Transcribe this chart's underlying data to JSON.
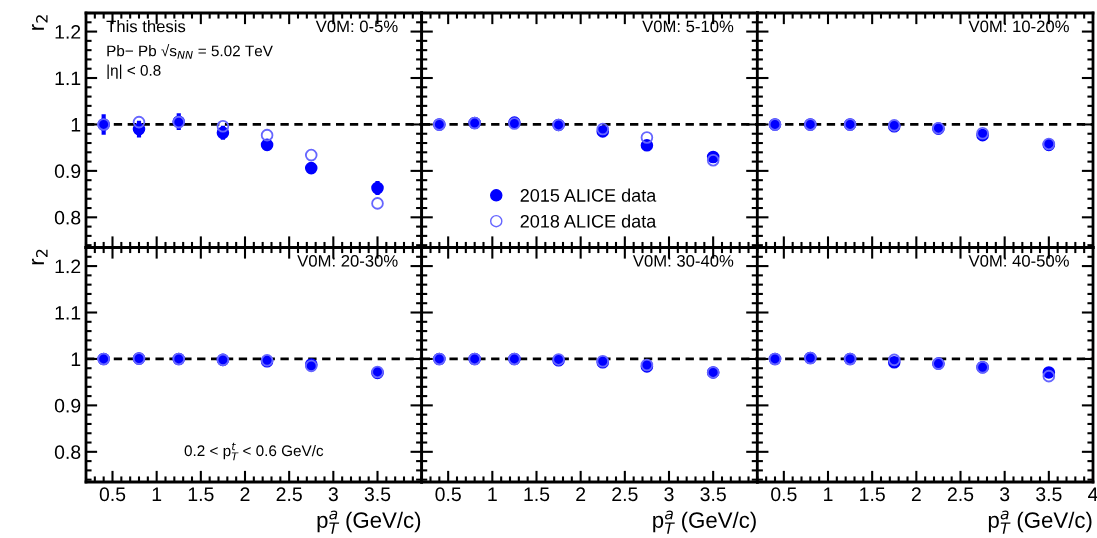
{
  "chart_data": [
    {
      "type": "scatter",
      "title": "V0M: 0-5%",
      "ylabel": "r$_{2}$",
      "x": [
        0.4,
        0.8,
        1.25,
        1.75,
        2.25,
        2.75,
        3.5
      ],
      "xlim": [
        0.2,
        4
      ],
      "ylim": [
        0.735,
        1.24
      ],
      "xticks": [
        0.5,
        1,
        1.5,
        2,
        2.5,
        3,
        3.5
      ],
      "yticks": [
        0.8,
        0.9,
        1,
        1.1,
        1.2
      ],
      "tick_labels": "y",
      "marker": "circle",
      "annotations": [
        "This thesis",
        "Pb− Pb √s$_{NN}$ = 5.02 TeV",
        "|η| < 0.8"
      ],
      "ref_lines": [
        {
          "axis": "y",
          "value": 1,
          "color": "#000000",
          "line_style": "dashed"
        }
      ],
      "series": [
        {
          "color": "#0000ff",
          "values": [
            1.0,
            0.99,
            1.006,
            0.982,
            0.956,
            0.906,
            0.863
          ],
          "errors": [
            0.022,
            0.018,
            0.018,
            0.015,
            0.01,
            0.012,
            0.015
          ]
        },
        {
          "color": "#6666ff",
          "values": [
            1.0,
            1.005,
            1.005,
            0.996,
            0.977,
            0.934,
            0.83
          ]
        }
      ]
    },
    {
      "type": "scatter",
      "title": "V0M: 5-10%",
      "x": [
        0.4,
        0.8,
        1.25,
        1.75,
        2.25,
        2.75,
        3.5
      ],
      "xlim": [
        0.2,
        4
      ],
      "ylim": [
        0.735,
        1.24
      ],
      "xticks": [
        0.5,
        1,
        1.5,
        2,
        2.5,
        3,
        3.5
      ],
      "yticks": [
        0.8,
        0.9,
        1,
        1.1,
        1.2
      ],
      "tick_labels": false,
      "marker": "circle",
      "legend": "bottom left",
      "ref_lines": [
        {
          "axis": "y",
          "value": 1,
          "color": "#000000",
          "line_style": "dashed"
        }
      ],
      "series": [
        {
          "name": "2015 ALICE data",
          "color": "#0000ff",
          "values": [
            1.0,
            1.003,
            1.004,
            0.999,
            0.985,
            0.955,
            0.93
          ]
        },
        {
          "name": "2018 ALICE data",
          "color": "#6666ff",
          "values": [
            1.0,
            1.003,
            1.002,
            0.999,
            0.99,
            0.972,
            0.923
          ]
        }
      ]
    },
    {
      "type": "scatter",
      "title": "V0M: 10-20%",
      "x": [
        0.4,
        0.8,
        1.25,
        1.75,
        2.25,
        2.75,
        3.5
      ],
      "xlim": [
        0.2,
        4
      ],
      "ylim": [
        0.735,
        1.24
      ],
      "xticks": [
        0.5,
        1,
        1.5,
        2,
        2.5,
        3,
        3.5
      ],
      "yticks": [
        0.8,
        0.9,
        1,
        1.1,
        1.2
      ],
      "tick_labels": false,
      "marker": "circle",
      "ref_lines": [
        {
          "axis": "y",
          "value": 1,
          "color": "#000000",
          "line_style": "dashed"
        }
      ],
      "series": [
        {
          "color": "#0000ff",
          "values": [
            1.0,
            1.0,
            1.0,
            0.996,
            0.991,
            0.977,
            0.956
          ]
        },
        {
          "color": "#6666ff",
          "values": [
            1.0,
            1.0,
            1.0,
            0.998,
            0.992,
            0.981,
            0.958
          ]
        }
      ]
    },
    {
      "type": "scatter",
      "title": "V0M: 20-30%",
      "ylabel": "r$_{2}$",
      "xlabel": "p$^{a}$$_{T}$ (GeV/c)",
      "x": [
        0.4,
        0.8,
        1.25,
        1.75,
        2.25,
        2.75,
        3.5
      ],
      "xlim": [
        0.2,
        4
      ],
      "ylim": [
        0.735,
        1.24
      ],
      "xticks": [
        0.5,
        1,
        1.5,
        2,
        2.5,
        3,
        3.5
      ],
      "yticks": [
        0.8,
        0.9,
        1,
        1.1,
        1.2
      ],
      "marker": "circle",
      "annotations": [
        "0.2 < p$^{t}$$_{T}$ < 0.6 GeV/c"
      ],
      "ref_lines": [
        {
          "axis": "y",
          "value": 1,
          "color": "#000000",
          "line_style": "dashed"
        }
      ],
      "series": [
        {
          "color": "#0000ff",
          "values": [
            1.0,
            1.001,
            1.0,
            0.998,
            0.995,
            0.988,
            0.97
          ]
        },
        {
          "color": "#6666ff",
          "values": [
            1.0,
            1.001,
            1.0,
            0.998,
            0.997,
            0.985,
            0.972
          ]
        }
      ]
    },
    {
      "type": "scatter",
      "title": "V0M: 30-40%",
      "xlabel": "p$^{a}$$_{T}$ (GeV/c)",
      "x": [
        0.4,
        0.8,
        1.25,
        1.75,
        2.25,
        2.75,
        3.5
      ],
      "xlim": [
        0.2,
        4
      ],
      "ylim": [
        0.735,
        1.24
      ],
      "xticks": [
        0.5,
        1,
        1.5,
        2,
        2.5,
        3,
        3.5
      ],
      "yticks": [
        0.8,
        0.9,
        1,
        1.1,
        1.2
      ],
      "tick_labels": "x",
      "marker": "circle",
      "ref_lines": [
        {
          "axis": "y",
          "value": 1,
          "color": "#000000",
          "line_style": "dashed"
        }
      ],
      "series": [
        {
          "color": "#0000ff",
          "values": [
            1.0,
            1.0,
            1.0,
            0.997,
            0.993,
            0.984,
            0.971
          ]
        },
        {
          "color": "#6666ff",
          "values": [
            1.0,
            1.0,
            1.0,
            0.999,
            0.995,
            0.987,
            0.971
          ]
        }
      ]
    },
    {
      "type": "scatter",
      "title": "V0M: 40-50%",
      "xlabel": "p$^{a}$$_{T}$ (GeV/c)",
      "x": [
        0.4,
        0.8,
        1.25,
        1.75,
        2.25,
        2.75,
        3.5
      ],
      "xlim": [
        0.2,
        4
      ],
      "ylim": [
        0.735,
        1.24
      ],
      "xticks": [
        0.5,
        1,
        1.5,
        2,
        2.5,
        3,
        3.5,
        4
      ],
      "yticks": [
        0.8,
        0.9,
        1,
        1.1,
        1.2
      ],
      "tick_labels": "x",
      "marker": "circle",
      "ref_lines": [
        {
          "axis": "y",
          "value": 1,
          "color": "#000000",
          "line_style": "dashed"
        }
      ],
      "series": [
        {
          "color": "#0000ff",
          "values": [
            1.0,
            1.002,
            1.0,
            0.993,
            0.99,
            0.982,
            0.971
          ]
        },
        {
          "color": "#6666ff",
          "values": [
            1.0,
            1.002,
            1.0,
            0.998,
            0.99,
            0.982,
            0.963
          ]
        }
      ]
    }
  ]
}
